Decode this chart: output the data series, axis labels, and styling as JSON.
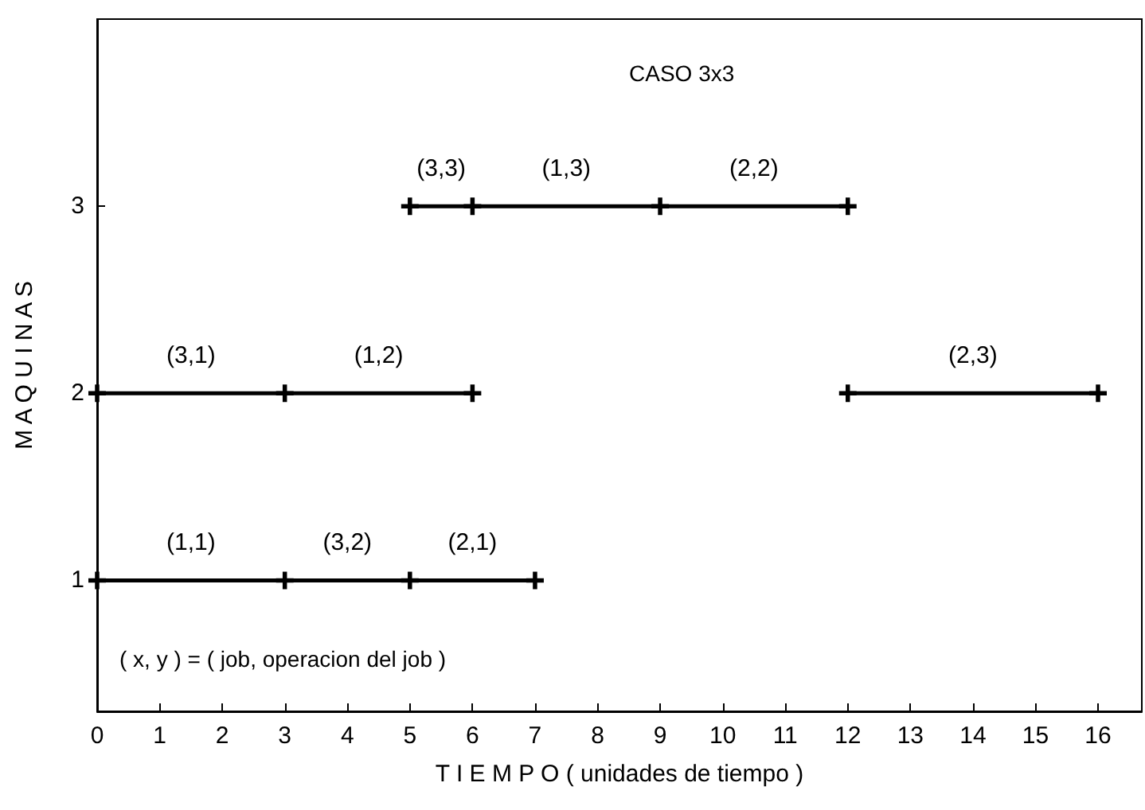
{
  "chart_data": {
    "type": "line",
    "title": "CASO 3x3",
    "xlabel": "T I E M P O ( unidades de tiempo )",
    "ylabel": "M A Q U I N A S",
    "series": [
      {
        "color": "#000000",
        "x": [
          0,
          3,
          5,
          7
        ],
        "values": [
          1,
          1,
          1,
          1
        ]
      },
      {
        "color": "#000000",
        "x": [
          0,
          3,
          6
        ],
        "values": [
          2,
          2,
          2
        ]
      },
      {
        "color": "#000000",
        "x": [
          12,
          16
        ],
        "values": [
          2,
          2
        ]
      },
      {
        "color": "#000000",
        "x": [
          5,
          6,
          9,
          12
        ],
        "values": [
          3,
          3,
          3,
          3
        ]
      }
    ],
    "annotations": [
      {
        "text": "(1,1)",
        "x": 1.5,
        "y": 1
      },
      {
        "text": "(3,2)",
        "x": 4,
        "y": 1
      },
      {
        "text": "(2,1)",
        "x": 6,
        "y": 1
      },
      {
        "text": "(3,1)",
        "x": 1.5,
        "y": 2
      },
      {
        "text": "(1,2)",
        "x": 4.5,
        "y": 2
      },
      {
        "text": "(2,3)",
        "x": 14,
        "y": 2
      },
      {
        "text": "(3,3)",
        "x": 5.5,
        "y": 3
      },
      {
        "text": "(1,3)",
        "x": 7.5,
        "y": 3
      },
      {
        "text": "(2,2)",
        "x": 10.5,
        "y": 3
      },
      "( x, y ) = ( job, operacion del job )"
    ],
    "xlim": [
      0,
      16.7
    ],
    "xticks": [
      0,
      1,
      2,
      3,
      4,
      5,
      6,
      7,
      8,
      9,
      10,
      11,
      12,
      13,
      14,
      15,
      16
    ],
    "ylim": [
      0.3,
      4
    ],
    "yticks": [
      1,
      2,
      3
    ],
    "grid": false,
    "marker": "cross",
    "line_style": "solid"
  }
}
